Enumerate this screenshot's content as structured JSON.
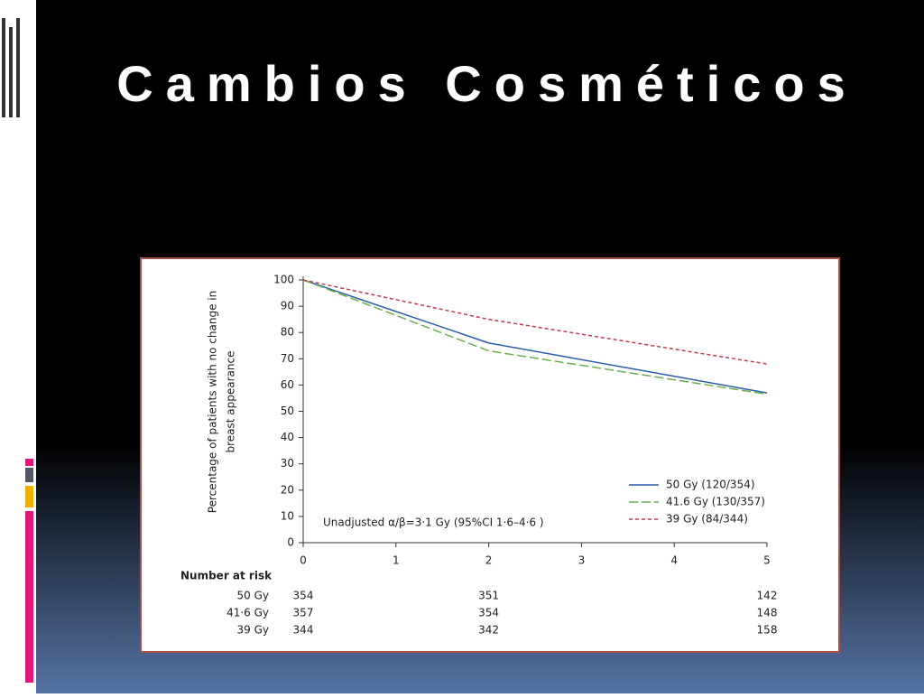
{
  "slide_title": "Cambios Cosméticos",
  "chart_data": {
    "type": "line",
    "ylabel_lines": [
      "Percentage of patients with no change in",
      "breast appearance"
    ],
    "x": [
      0,
      2,
      5
    ],
    "xlim": [
      0,
      5
    ],
    "xticks": [
      0,
      1,
      2,
      3,
      4,
      5
    ],
    "ylim": [
      0,
      100
    ],
    "yticks": [
      0,
      10,
      20,
      30,
      40,
      50,
      60,
      70,
      80,
      90,
      100
    ],
    "series": [
      {
        "name": "50 Gy (120/354)",
        "color": "#2a5caa",
        "dash": "solid",
        "values": [
          100,
          76,
          57
        ]
      },
      {
        "name": "41.6 Gy (130/357)",
        "color": "#6ab04c",
        "dash": "long-dash",
        "values": [
          100,
          73,
          56.5
        ]
      },
      {
        "name": "39 Gy (84/344)",
        "color": "#c0394b",
        "dash": "short-dash",
        "values": [
          100,
          85,
          68
        ]
      }
    ],
    "annotation": "Unadjusted α/β=3·1 Gy (95%CI 1·6–4·6 )",
    "risk_table": {
      "title": "Number at risk",
      "rows": [
        {
          "label": "50 Gy",
          "values": [
            354,
            351,
            142
          ]
        },
        {
          "label": "41·6 Gy",
          "values": [
            357,
            354,
            148
          ]
        },
        {
          "label": "39 Gy",
          "values": [
            344,
            342,
            158
          ]
        }
      ]
    }
  }
}
